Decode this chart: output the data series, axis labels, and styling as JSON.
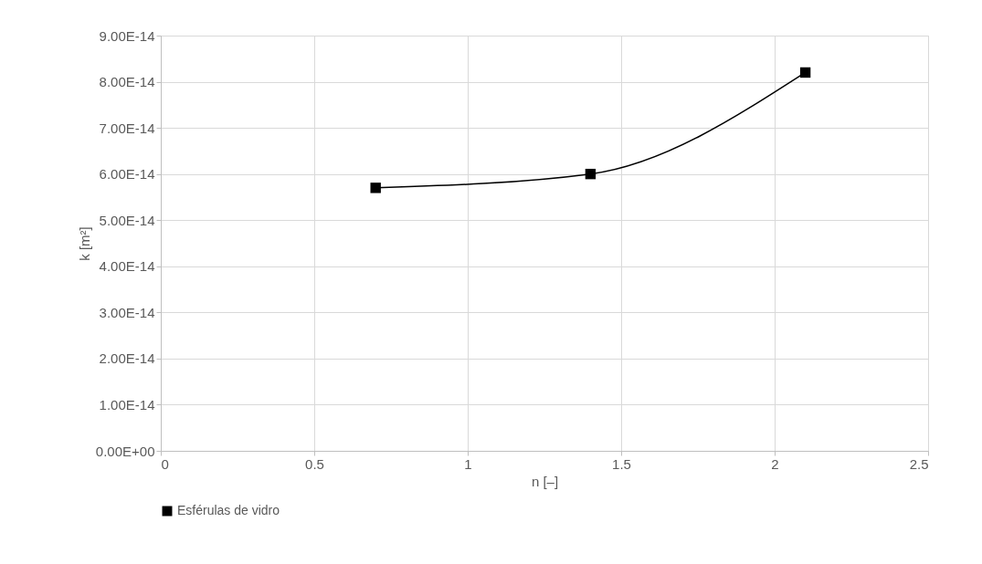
{
  "chart_data": {
    "type": "line",
    "xlabel": "n [–]",
    "ylabel": "k [m²]",
    "x": [
      0.7,
      1.4,
      2.1
    ],
    "series": [
      {
        "name": "Esférulas de vidro",
        "color": "#000000",
        "values": [
          5.7e-14,
          6e-14,
          8.2e-14
        ]
      }
    ],
    "xlim": [
      0,
      2.5
    ],
    "xticks": [
      0,
      0.5,
      1,
      1.5,
      2,
      2.5
    ],
    "ylim": [
      0,
      9e-14
    ],
    "yticks": [
      {
        "value": 0,
        "label": "0.00E+00"
      },
      {
        "value": 1e-14,
        "label": "1.00E-14"
      },
      {
        "value": 2e-14,
        "label": "2.00E-14"
      },
      {
        "value": 3e-14,
        "label": "3.00E-14"
      },
      {
        "value": 4e-14,
        "label": "4.00E-14"
      },
      {
        "value": 5e-14,
        "label": "5.00E-14"
      },
      {
        "value": 6e-14,
        "label": "6.00E-14"
      },
      {
        "value": 7e-14,
        "label": "7.00E-14"
      },
      {
        "value": 8e-14,
        "label": "8.00E-14"
      },
      {
        "value": 9e-14,
        "label": "9.00E-14"
      }
    ],
    "grid": true,
    "legend": "bottom left",
    "marker": "square",
    "line_style": "solid"
  }
}
